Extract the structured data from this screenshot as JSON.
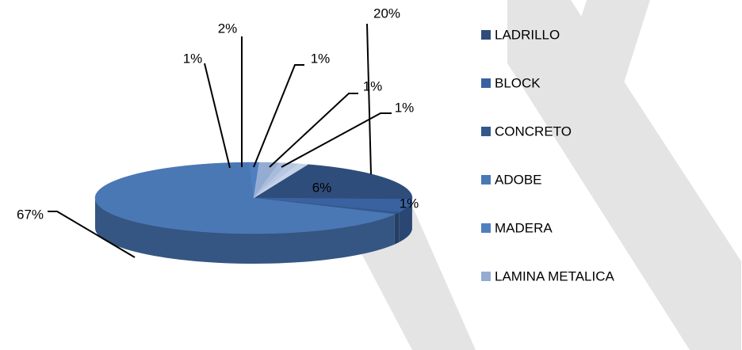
{
  "chart_data": {
    "type": "pie3d",
    "categories": [
      "LADRILLO",
      "BLOCK",
      "CONCRETO",
      "ADOBE",
      "MADERA",
      "LAMINA METALICA",
      null,
      null,
      null
    ],
    "values": [
      20,
      6,
      1,
      67,
      1,
      2,
      1,
      1,
      1
    ],
    "value_labels": [
      "20%",
      "6%",
      "1%",
      "67%",
      "1%",
      "2%",
      "1%",
      "1%",
      "1%"
    ],
    "colors": [
      "#2e4d7b",
      "#3a62a0",
      "#33588a",
      "#4a78b5",
      "#4f7fc0",
      "#95acd2",
      "#a9bcdc",
      "#b8c8e2",
      "#c6d3e8"
    ],
    "legend": "right"
  }
}
